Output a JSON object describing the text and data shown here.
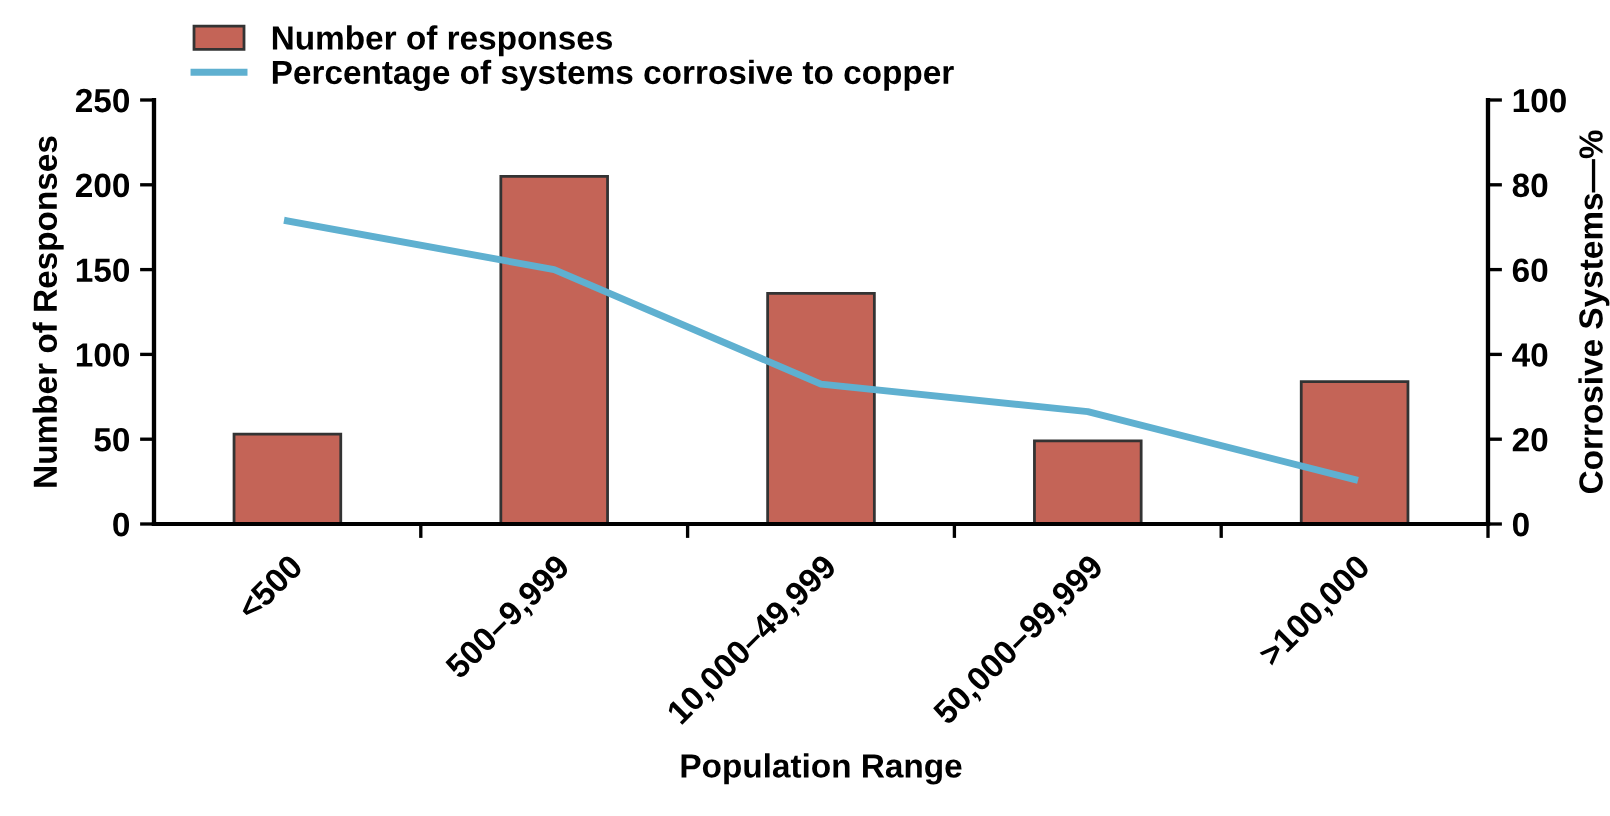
{
  "chart_data": {
    "type": "bar",
    "categories": [
      "<500",
      "500–9,999",
      "10,000–49,999",
      "50,000–99,999",
      ">100,000"
    ],
    "series": [
      {
        "name": "Number of responses",
        "color": "#c46457",
        "values": [
          53,
          205,
          136,
          49,
          84
        ]
      },
      {
        "name": "Percentage of systems corrosive to copper",
        "type": "line",
        "axis": "y2",
        "color": "#5fb0d0",
        "values": [
          71.5,
          60,
          33,
          26.5,
          10.5
        ]
      }
    ],
    "xlabel": "Population Range",
    "ylabel": "Number of Responses",
    "y2label": "Corrosive Systems—%",
    "ylim": [
      0,
      250
    ],
    "yticks": [
      0,
      50,
      100,
      150,
      200,
      250
    ],
    "y2lim": [
      0,
      100
    ],
    "y2ticks": [
      0,
      20,
      40,
      60,
      80,
      100
    ],
    "grid": false,
    "legend": "top left",
    "marker": "none",
    "line_style": "solid"
  }
}
